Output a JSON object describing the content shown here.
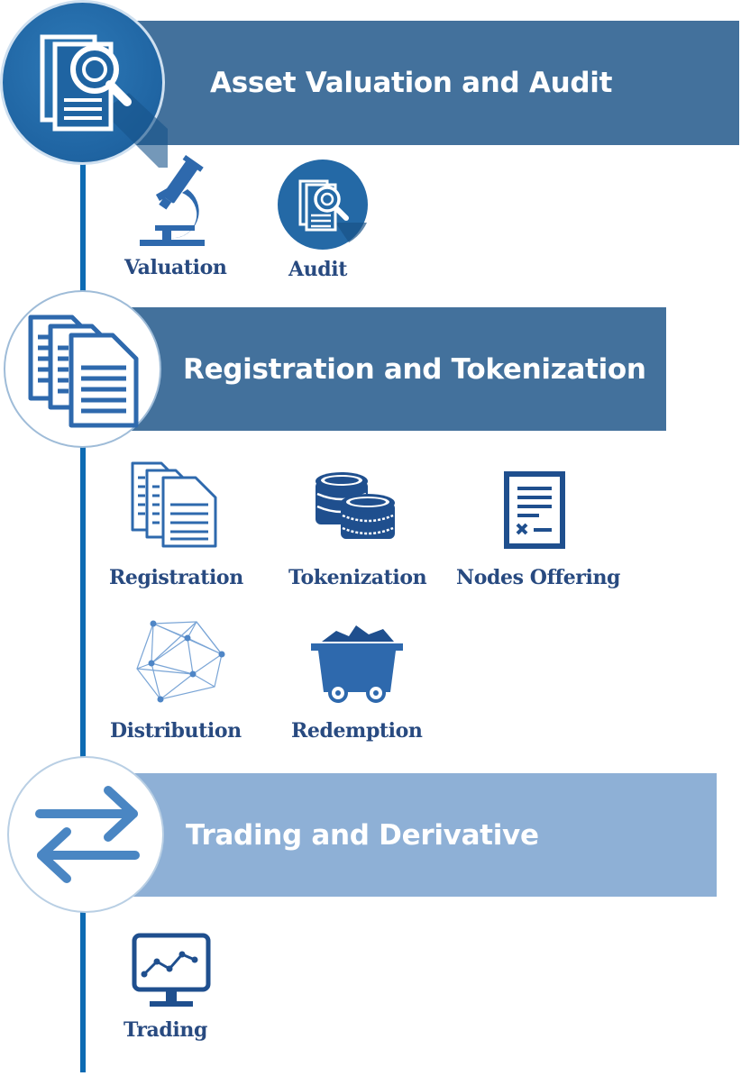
{
  "stages": [
    {
      "title": "Asset Valuation and Audit",
      "icon": "audit-document-magnifier-icon"
    },
    {
      "title": "Registration and Tokenization",
      "icon": "stacked-documents-icon"
    },
    {
      "title": "Trading and Derivative",
      "icon": "exchange-arrows-icon"
    }
  ],
  "items": {
    "valuation": {
      "label": "Valuation",
      "icon": "microscope-icon"
    },
    "audit": {
      "label": "Audit",
      "icon": "audit-document-magnifier-icon"
    },
    "registration": {
      "label": "Registration",
      "icon": "stacked-documents-icon"
    },
    "tokenization": {
      "label": "Tokenization",
      "icon": "coin-stacks-icon"
    },
    "nodes_offering": {
      "label": "Nodes Offering",
      "icon": "contract-document-icon"
    },
    "distribution": {
      "label": "Distribution",
      "icon": "network-graph-icon"
    },
    "redemption": {
      "label": "Redemption",
      "icon": "mine-cart-icon"
    },
    "trading": {
      "label": "Trading",
      "icon": "stock-chart-monitor-icon"
    }
  },
  "colors": {
    "dark_banner": "#43719c",
    "light_banner": "#8eb0d6",
    "timeline": "#0d6bb3",
    "label_text": "#284a80",
    "icon_blue": "#2e69ad"
  }
}
